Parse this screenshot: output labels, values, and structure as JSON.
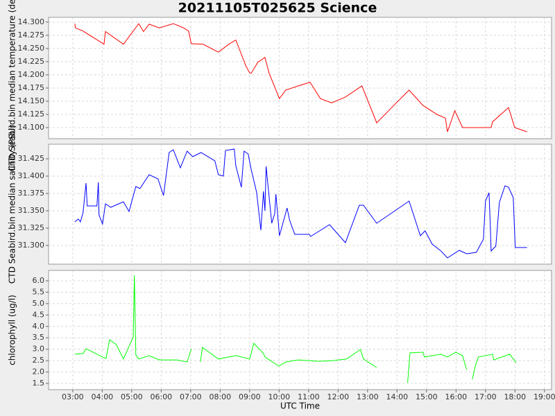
{
  "chart_data": [
    {
      "type": "line",
      "title": "20211105T025625 Science",
      "ylabel": "CTD Seabird.bin median temperature (degC)",
      "xlim": [
        2.18,
        19.24
      ],
      "ylim": [
        14.079,
        14.309
      ],
      "yticks": [
        {
          "value": 14.1,
          "label": "14.100"
        },
        {
          "value": 14.125,
          "label": "14.125"
        },
        {
          "value": 14.15,
          "label": "14.150"
        },
        {
          "value": 14.175,
          "label": "14.175"
        },
        {
          "value": 14.2,
          "label": "14.200"
        },
        {
          "value": 14.225,
          "label": "14.225"
        },
        {
          "value": 14.25,
          "label": "14.250"
        },
        {
          "value": 14.275,
          "label": "14.275"
        },
        {
          "value": 14.3,
          "label": "14.300"
        }
      ],
      "grid": true,
      "series": [
        {
          "color": "#ff0000",
          "x": [
            3.07,
            3.09,
            3.35,
            4.06,
            4.11,
            4.72,
            5.24,
            5.4,
            5.59,
            5.94,
            6.41,
            6.76,
            6.93,
            7.02,
            7.42,
            7.94,
            8.29,
            8.53,
            8.88,
            9.0,
            9.05,
            9.28,
            9.52,
            9.66,
            10.01,
            10.22,
            10.65,
            11.05,
            11.4,
            11.78,
            12.25,
            12.81,
            13.31,
            13.94,
            14.41,
            14.88,
            15.35,
            15.64,
            15.71,
            15.96,
            16.22,
            17.19,
            17.24,
            17.78,
            17.99,
            18.41
          ],
          "values": [
            14.297,
            14.289,
            14.283,
            14.258,
            14.282,
            14.258,
            14.297,
            14.282,
            14.296,
            14.289,
            14.297,
            14.289,
            14.283,
            14.259,
            14.258,
            14.243,
            14.258,
            14.266,
            14.216,
            14.204,
            14.203,
            14.224,
            14.233,
            14.203,
            14.155,
            14.171,
            14.179,
            14.186,
            14.155,
            14.147,
            14.158,
            14.179,
            14.109,
            14.145,
            14.171,
            14.142,
            14.125,
            14.118,
            14.092,
            14.132,
            14.1,
            14.1,
            14.111,
            14.138,
            14.1,
            14.092
          ]
        }
      ]
    },
    {
      "type": "line",
      "ylabel": "CTD Seabird.bin median salinity (PSU)",
      "xlim": [
        2.18,
        19.24
      ],
      "ylim": [
        31.273,
        31.446
      ],
      "yticks": [
        {
          "value": 31.3,
          "label": "31.300"
        },
        {
          "value": 31.325,
          "label": "31.325"
        },
        {
          "value": 31.35,
          "label": "31.350"
        },
        {
          "value": 31.375,
          "label": "31.375"
        },
        {
          "value": 31.4,
          "label": "31.400"
        },
        {
          "value": 31.425,
          "label": "31.425"
        }
      ],
      "grid": true,
      "series": [
        {
          "color": "#0000ff",
          "x": [
            3.07,
            3.19,
            3.26,
            3.35,
            3.45,
            3.49,
            3.82,
            3.87,
            3.89,
            4.01,
            4.11,
            4.29,
            4.72,
            4.91,
            5.14,
            5.28,
            5.59,
            5.89,
            6.08,
            6.27,
            6.41,
            6.65,
            6.88,
            7.07,
            7.35,
            7.82,
            7.94,
            8.11,
            8.18,
            8.48,
            8.53,
            8.72,
            8.81,
            8.95,
            9.05,
            9.24,
            9.38,
            9.47,
            9.52,
            9.56,
            9.75,
            9.85,
            9.89,
            10.01,
            10.27,
            10.36,
            10.53,
            11.02,
            11.07,
            11.71,
            12.25,
            12.72,
            12.86,
            13.31,
            14.41,
            14.79,
            14.95,
            15.19,
            15.49,
            15.71,
            16.11,
            16.36,
            16.69,
            16.93,
            17.0,
            17.12,
            17.16,
            17.19,
            17.35,
            17.47,
            17.66,
            17.78,
            17.94,
            18.01,
            18.41
          ],
          "values": [
            31.334,
            31.338,
            31.334,
            31.347,
            31.39,
            31.357,
            31.357,
            31.391,
            31.344,
            31.331,
            31.36,
            31.355,
            31.363,
            31.349,
            31.385,
            31.382,
            31.402,
            31.396,
            31.372,
            31.434,
            31.438,
            31.412,
            31.436,
            31.428,
            31.434,
            31.422,
            31.402,
            31.4,
            31.437,
            31.439,
            31.415,
            31.384,
            31.436,
            31.432,
            31.41,
            31.376,
            31.322,
            31.378,
            31.35,
            31.414,
            31.332,
            31.346,
            31.374,
            31.314,
            31.354,
            31.336,
            31.316,
            31.316,
            31.313,
            31.33,
            31.304,
            31.358,
            31.358,
            31.332,
            31.364,
            31.314,
            31.321,
            31.302,
            31.292,
            31.282,
            31.293,
            31.288,
            31.29,
            31.309,
            31.364,
            31.376,
            31.332,
            31.292,
            31.299,
            31.362,
            31.386,
            31.384,
            31.369,
            31.297,
            31.297
          ]
        }
      ]
    },
    {
      "type": "line",
      "ylabel": "chlorophyll (ug/l)",
      "xlabel": "UTC Time",
      "xlim": [
        2.18,
        19.24
      ],
      "ylim": [
        1.227,
        6.456
      ],
      "xticks": [
        {
          "value": 3,
          "label": "03:00"
        },
        {
          "value": 4,
          "label": "04:00"
        },
        {
          "value": 5,
          "label": "05:00"
        },
        {
          "value": 6,
          "label": "06:00"
        },
        {
          "value": 7,
          "label": "07:00"
        },
        {
          "value": 8,
          "label": "08:00"
        },
        {
          "value": 9,
          "label": "09:00"
        },
        {
          "value": 10,
          "label": "10:00"
        },
        {
          "value": 11,
          "label": "11:00"
        },
        {
          "value": 12,
          "label": "12:00"
        },
        {
          "value": 13,
          "label": "13:00"
        },
        {
          "value": 14,
          "label": "14:00"
        },
        {
          "value": 15,
          "label": "15:00"
        },
        {
          "value": 16,
          "label": "16:00"
        },
        {
          "value": 17,
          "label": "17:00"
        },
        {
          "value": 18,
          "label": "18:00"
        },
        {
          "value": 19,
          "label": "19:00"
        }
      ],
      "yticks": [
        1.5,
        {
          "value": 2,
          "label": "2.0"
        },
        2.5,
        {
          "value": 3,
          "label": "3.0"
        },
        3.5,
        {
          "value": 4,
          "label": "4.0"
        },
        4.5,
        {
          "value": 5,
          "label": "5.0"
        },
        5.5,
        {
          "value": 6,
          "label": "6.0"
        }
      ],
      "grid": true,
      "series": [
        {
          "color": "#00ff00",
          "x": [
            3.07,
            3.35,
            3.45,
            4.06,
            4.13,
            4.25,
            4.48,
            4.72,
            5.05,
            5.09,
            5.14,
            5.24,
            5.59,
            5.94,
            6.53,
            6.88,
            7.02,
            7.1,
            7.33,
            7.4,
            7.94,
            8.53,
            9.0,
            9.05,
            9.14,
            9.47,
            9.52,
            9.99,
            10.22,
            10.65,
            11.35,
            11.82,
            12.29,
            12.76,
            12.86,
            13.31,
            13.8,
            14.36,
            14.44,
            14.88,
            14.93,
            15.49,
            15.71,
            15.99,
            16.22,
            16.36,
            16.45,
            16.55,
            16.67,
            16.76,
            17.24,
            17.28,
            17.82,
            18.04
          ],
          "values": [
            2.78,
            2.81,
            3.02,
            2.63,
            2.6,
            3.42,
            3.2,
            2.57,
            3.54,
            6.24,
            2.75,
            2.57,
            2.72,
            2.53,
            2.53,
            2.44,
            3.02,
            null,
            2.44,
            3.08,
            2.57,
            2.72,
            2.57,
            2.81,
            3.26,
            2.81,
            2.66,
            2.26,
            2.44,
            2.53,
            2.47,
            2.5,
            2.57,
            2.99,
            2.57,
            2.2,
            null,
            1.53,
            2.84,
            2.87,
            2.66,
            2.78,
            2.66,
            2.87,
            2.72,
            2.11,
            null,
            1.68,
            2.35,
            2.66,
            2.78,
            2.53,
            2.78,
            2.41
          ]
        }
      ]
    }
  ]
}
